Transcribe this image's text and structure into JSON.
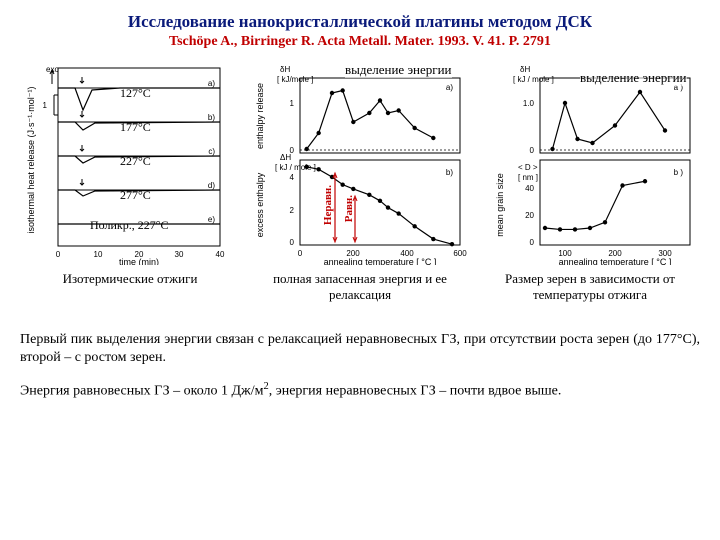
{
  "title": "Исследование нанокристаллической платины методом ДСК",
  "citation": "Tschöpe A., Birringer R. Acta Metall. Mater. 1993. V. 41. P. 2791",
  "chart1": {
    "type": "line",
    "overlay_top": "выделение энергии",
    "ylabel_top": "δH",
    "ylabel_top_units": "[ kJ/mole ]",
    "ylabel_top_side": "enthalpy release",
    "ylabel_bot": "ΔH",
    "ylabel_bot_units": "[ kJ / mole ]",
    "ylabel_bot_side": "excess enthalpy",
    "xlabel": "annealing temperature [ °C ]",
    "xlim": [
      0,
      600
    ],
    "xticks": [
      0,
      200,
      400,
      600
    ],
    "top_ylim": [
      0,
      1.5
    ],
    "top_yticks": [
      0,
      1
    ],
    "bot_ylim": [
      0,
      5
    ],
    "bot_yticks": [
      0,
      2,
      4
    ],
    "top_points": [
      [
        25,
        0.08
      ],
      [
        70,
        0.4
      ],
      [
        120,
        1.2
      ],
      [
        160,
        1.25
      ],
      [
        200,
        0.62
      ],
      [
        260,
        0.8
      ],
      [
        300,
        1.05
      ],
      [
        330,
        0.8
      ],
      [
        370,
        0.85
      ],
      [
        430,
        0.5
      ],
      [
        500,
        0.3
      ]
    ],
    "bot_points": [
      [
        25,
        4.6
      ],
      [
        70,
        4.45
      ],
      [
        120,
        4.0
      ],
      [
        160,
        3.55
      ],
      [
        200,
        3.3
      ],
      [
        260,
        2.95
      ],
      [
        300,
        2.6
      ],
      [
        330,
        2.2
      ],
      [
        370,
        1.85
      ],
      [
        430,
        1.1
      ],
      [
        500,
        0.35
      ],
      [
        570,
        0.05
      ]
    ],
    "panel_a": "a)",
    "panel_b": "b)",
    "red_left": "Неравн.",
    "red_right": "Равн.",
    "color_axis": "#000000",
    "color_red": "#c00000",
    "background_color": "#ffffff"
  },
  "chart2": {
    "type": "line",
    "overlay_top": "выделение энергии",
    "ylabel_top": "δH",
    "ylabel_top_units": "[ kJ / mole ]",
    "ylabel_bot_units": "[ nm ]",
    "ylabel_bot": "< D >",
    "ylabel_bot_side": "mean grain size",
    "xlabel": "annealing temperature [ °C ]",
    "xlim": [
      50,
      350
    ],
    "xticks": [
      100,
      200,
      300
    ],
    "top_ylim": [
      0,
      1.5
    ],
    "top_yticks": [
      0,
      1.0
    ],
    "bot_ylim": [
      0,
      60
    ],
    "bot_yticks": [
      0,
      20,
      40
    ],
    "top_points": [
      [
        75,
        0.08
      ],
      [
        100,
        1.0
      ],
      [
        125,
        0.28
      ],
      [
        155,
        0.2
      ],
      [
        200,
        0.55
      ],
      [
        250,
        1.22
      ],
      [
        300,
        0.45
      ]
    ],
    "bot_points": [
      [
        60,
        12
      ],
      [
        90,
        11
      ],
      [
        120,
        11
      ],
      [
        150,
        12
      ],
      [
        180,
        16
      ],
      [
        215,
        42
      ],
      [
        260,
        45
      ]
    ],
    "panel_a": "a )",
    "panel_b": "b )",
    "color_axis": "#000000",
    "background_color": "#ffffff"
  },
  "chart0": {
    "type": "line-stacked",
    "xlabel": "time (min)",
    "ylabel": "isothermal heat release (J·s⁻¹·mol⁻¹)",
    "xlim": [
      0,
      40
    ],
    "xticks": [
      0,
      10,
      20,
      30,
      40
    ],
    "traces": [
      {
        "label": "127°C",
        "panel": "a)",
        "dip_x": 7,
        "dip_depth": 22
      },
      {
        "label": "177°C",
        "panel": "b)",
        "dip_x": 7,
        "dip_depth": 8
      },
      {
        "label": "227°C",
        "panel": "c)",
        "dip_x": 7,
        "dip_depth": 7
      },
      {
        "label": "277°C",
        "panel": "d)",
        "dip_x": 7,
        "dip_depth": 6
      },
      {
        "label": "Поликр., 227°C",
        "panel": "e)",
        "dip_x": 7,
        "dip_depth": 1
      }
    ],
    "exo_arrow": "exo",
    "ytick": "1",
    "color_axis": "#000000",
    "background_color": "#ffffff"
  },
  "captions": {
    "c0": "Изотермические отжиги",
    "c1": "полная запасенная энергия и ее релаксация",
    "c2": "Размер зерен в зависимости от температуры отжига"
  },
  "body": {
    "p1": "Первый пик выделения энергии связан с релаксацией неравновесных ГЗ, при отсутствии роста зерен (до 177°С), второй – с ростом зерен.",
    "p2a": "Энергия равновесных ГЗ – около 1 Дж/м",
    "p2b": ", энергия неравновесных ГЗ – почти вдвое выше."
  }
}
